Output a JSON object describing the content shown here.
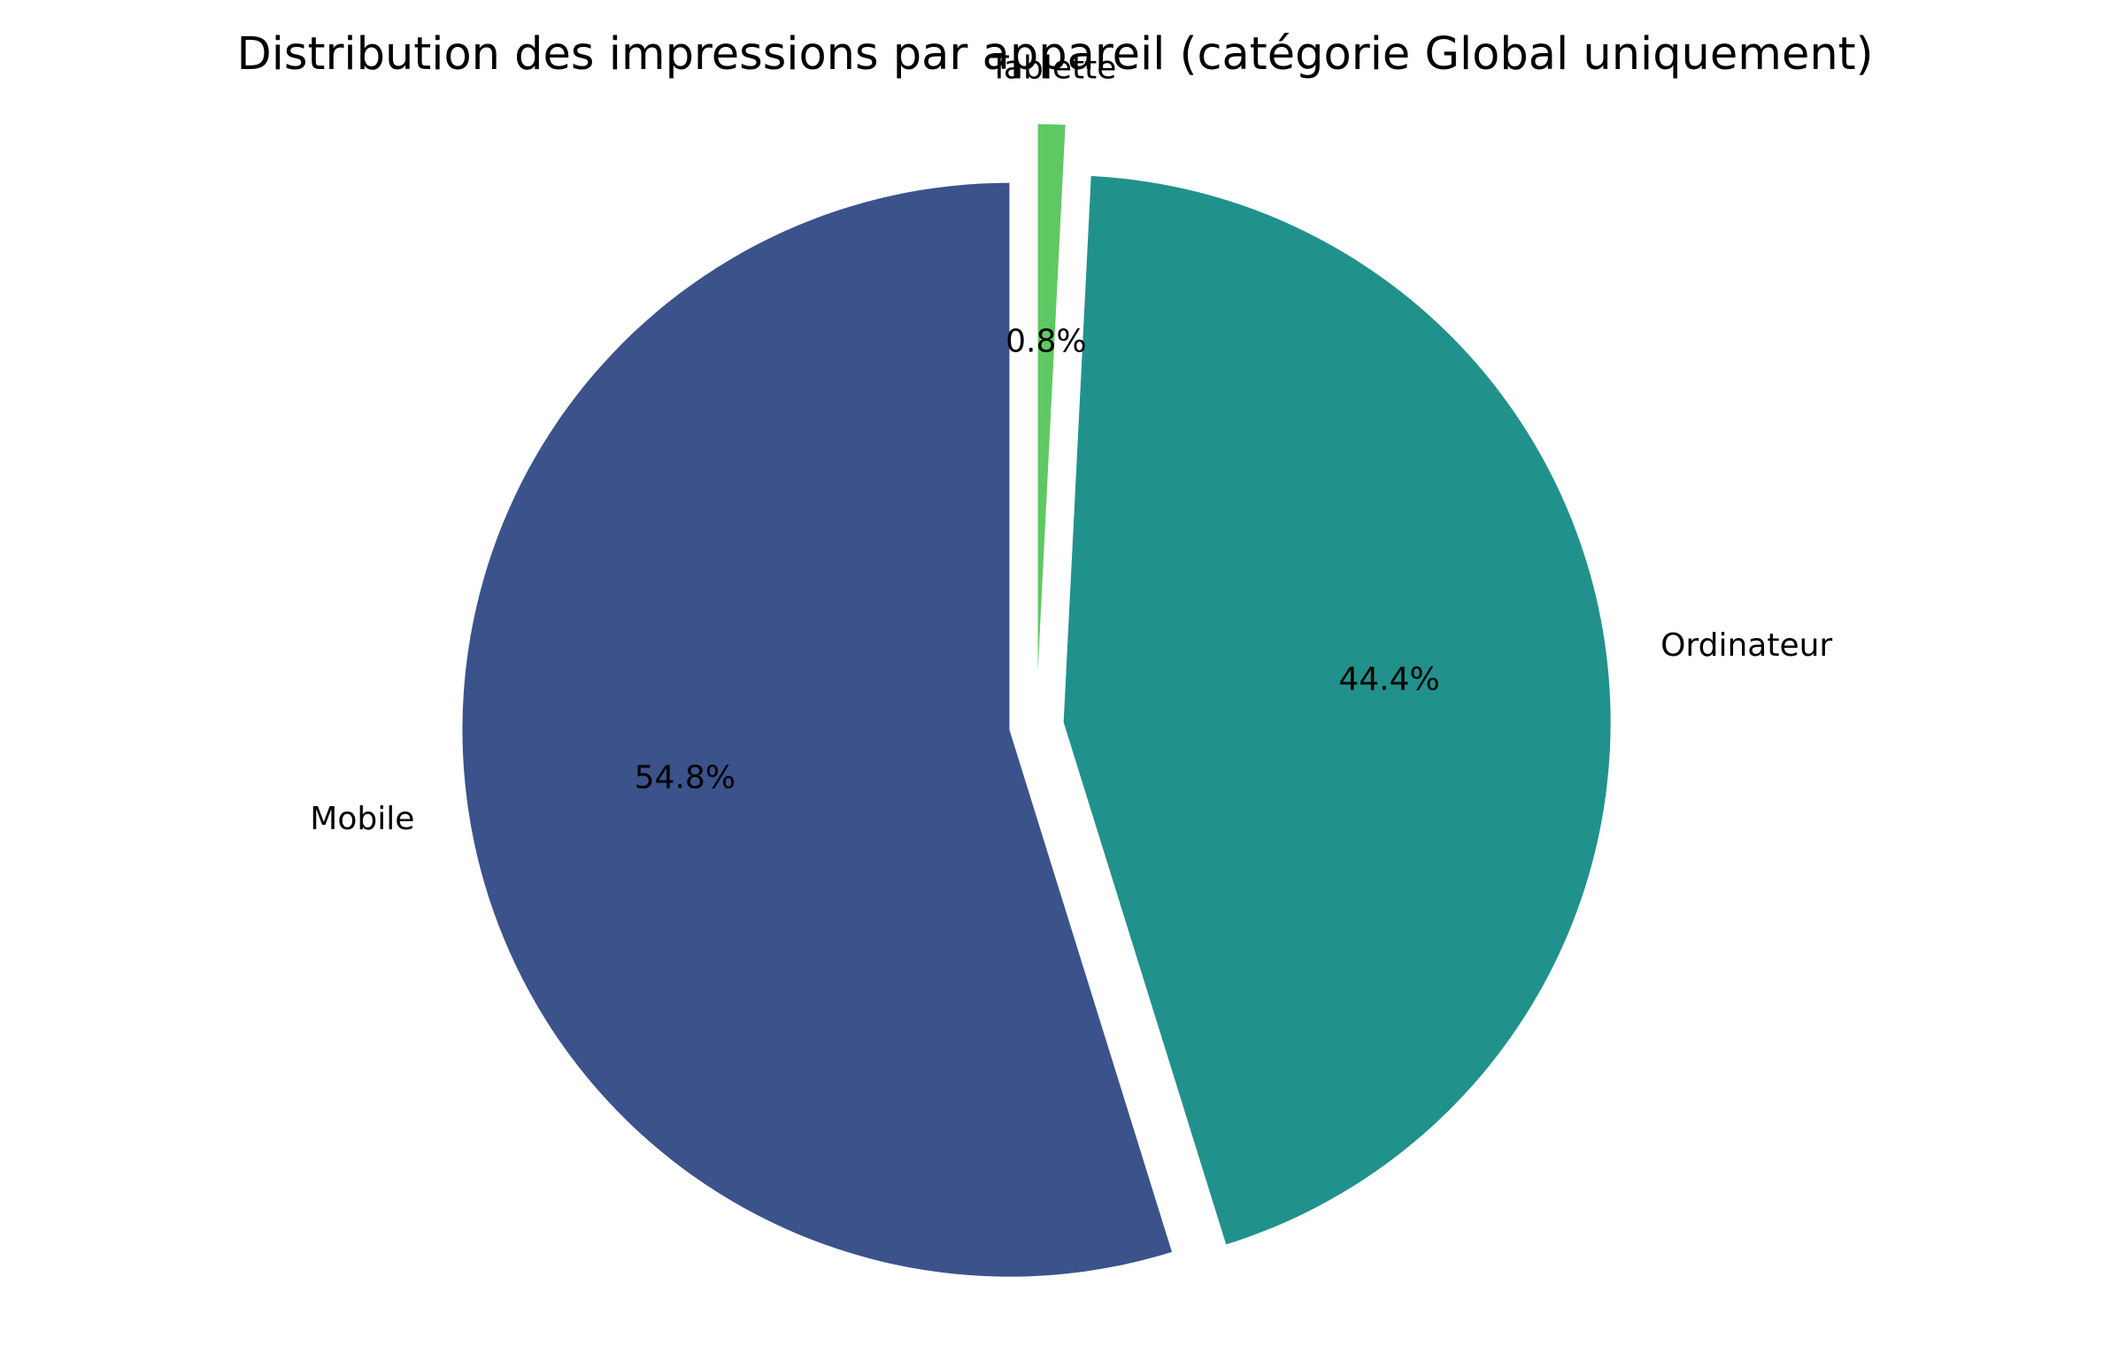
{
  "chart_data": {
    "type": "pie",
    "title": "Distribution des impressions par appareil (catégorie Global uniquement)",
    "slices": [
      {
        "label": "Mobile",
        "value": 54.8,
        "pct_label": "54.8%",
        "color": "#3b528b"
      },
      {
        "label": "Ordinateur",
        "value": 44.4,
        "pct_label": "44.4%",
        "color": "#21918c"
      },
      {
        "label": "Tablette",
        "value": 0.8,
        "pct_label": "0.8%",
        "color": "#5ec962"
      }
    ],
    "start_angle_deg": 90,
    "direction": "counterclockwise",
    "exploded": [
      0.05,
      0.05,
      0.1
    ],
    "legend": "none"
  }
}
